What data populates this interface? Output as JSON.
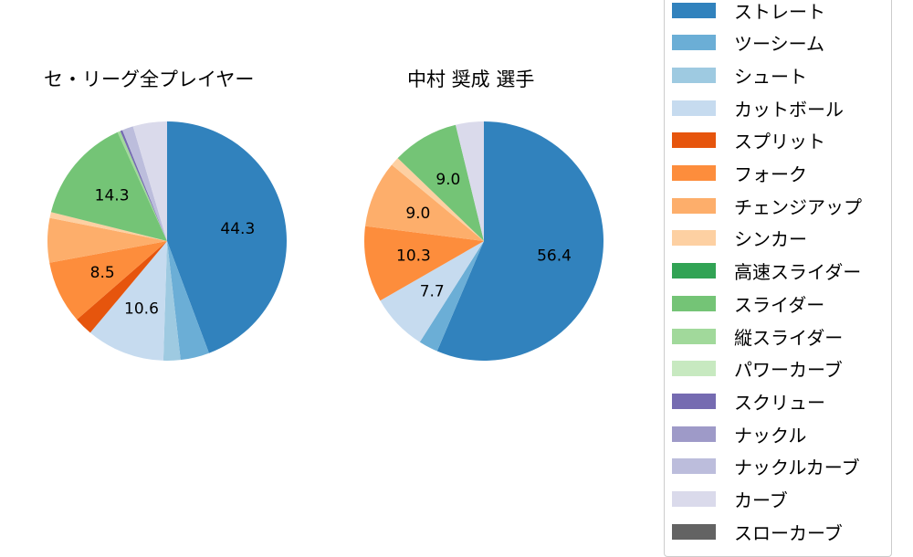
{
  "chart_data": [
    {
      "type": "pie",
      "title": "セ・リーグ全プレイヤー",
      "start_angle": 90,
      "direction": "clockwise",
      "categories": [
        "ストレート",
        "ツーシーム",
        "シュート",
        "カットボール",
        "スプリット",
        "フォーク",
        "チェンジアップ",
        "シンカー",
        "スライダー",
        "縦スライダー",
        "スクリュー",
        "ナックルカーブ",
        "カーブ"
      ],
      "values": [
        44.3,
        3.9,
        2.3,
        10.6,
        2.5,
        8.5,
        6.0,
        0.8,
        14.3,
        0.4,
        0.3,
        1.5,
        4.6
      ],
      "labels_shown": {
        "ストレート": "44.3",
        "カットボール": "10.6",
        "フォーク": "8.5",
        "スライダー": "14.3"
      }
    },
    {
      "type": "pie",
      "title": "中村 奨成  選手",
      "start_angle": 90,
      "direction": "clockwise",
      "categories": [
        "ストレート",
        "ツーシーム",
        "カットボール",
        "フォーク",
        "チェンジアップ",
        "シンカー",
        "スライダー",
        "カーブ"
      ],
      "values": [
        56.4,
        2.6,
        7.7,
        10.3,
        9.0,
        1.2,
        9.0,
        3.8
      ],
      "labels_shown": {
        "ストレート": "56.4",
        "カットボール": "7.7",
        "フォーク": "10.3",
        "チェンジアップ": "9.0",
        "スライダー": "9.0"
      }
    }
  ],
  "titles": {
    "left": "セ・リーグ全プレイヤー",
    "right": "中村 奨成  選手"
  },
  "colors": {
    "ストレート": "#3182bd",
    "ツーシーム": "#6baed6",
    "シュート": "#9ecae1",
    "カットボール": "#c6dbef",
    "スプリット": "#e6550d",
    "フォーク": "#fd8d3c",
    "チェンジアップ": "#fdae6b",
    "シンカー": "#fdd0a2",
    "高速スライダー": "#31a354",
    "スライダー": "#74c476",
    "縦スライダー": "#a1d99b",
    "パワーカーブ": "#c7e9c0",
    "スクリュー": "#756bb1",
    "ナックル": "#9e9ac8",
    "ナックルカーブ": "#bcbddc",
    "カーブ": "#dadaeb",
    "スローカーブ": "#636363"
  },
  "legend": {
    "items": [
      {
        "label": "ストレート",
        "color": "#3182bd"
      },
      {
        "label": "ツーシーム",
        "color": "#6baed6"
      },
      {
        "label": "シュート",
        "color": "#9ecae1"
      },
      {
        "label": "カットボール",
        "color": "#c6dbef"
      },
      {
        "label": "スプリット",
        "color": "#e6550d"
      },
      {
        "label": "フォーク",
        "color": "#fd8d3c"
      },
      {
        "label": "チェンジアップ",
        "color": "#fdae6b"
      },
      {
        "label": "シンカー",
        "color": "#fdd0a2"
      },
      {
        "label": "高速スライダー",
        "color": "#31a354"
      },
      {
        "label": "スライダー",
        "color": "#74c476"
      },
      {
        "label": "縦スライダー",
        "color": "#a1d99b"
      },
      {
        "label": "パワーカーブ",
        "color": "#c7e9c0"
      },
      {
        "label": "スクリュー",
        "color": "#756bb1"
      },
      {
        "label": "ナックル",
        "color": "#9e9ac8"
      },
      {
        "label": "ナックルカーブ",
        "color": "#bcbddc"
      },
      {
        "label": "カーブ",
        "color": "#dadaeb"
      },
      {
        "label": "スローカーブ",
        "color": "#636363"
      }
    ]
  }
}
